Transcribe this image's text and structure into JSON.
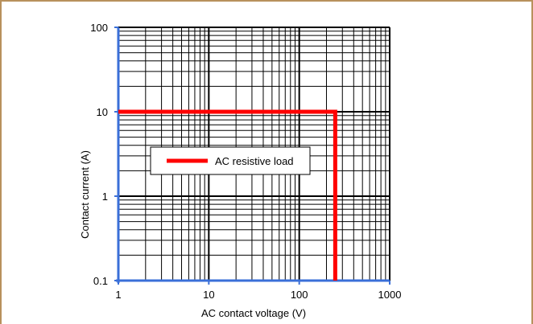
{
  "chart_data": {
    "type": "line",
    "xscale": "log",
    "yscale": "log",
    "xlim": [
      1,
      1000
    ],
    "ylim": [
      0.1,
      100
    ],
    "x_ticks": [
      "1",
      "10",
      "100",
      "1000"
    ],
    "y_ticks": [
      "0.1",
      "1",
      "10",
      "100"
    ],
    "xlabel": "AC contact voltage (V)",
    "ylabel": "Contact current (A)",
    "grid": true,
    "legend_position": "center-left",
    "series": [
      {
        "name": "AC resistive load",
        "color": "#ff0000",
        "x": [
          1,
          250,
          250
        ],
        "y": [
          10,
          10,
          0.1
        ]
      }
    ],
    "colors": {
      "axis": "#3a6fd8",
      "grid_major": "#000000",
      "grid_minor": "#000000",
      "frame_border": "#b8915c"
    }
  }
}
